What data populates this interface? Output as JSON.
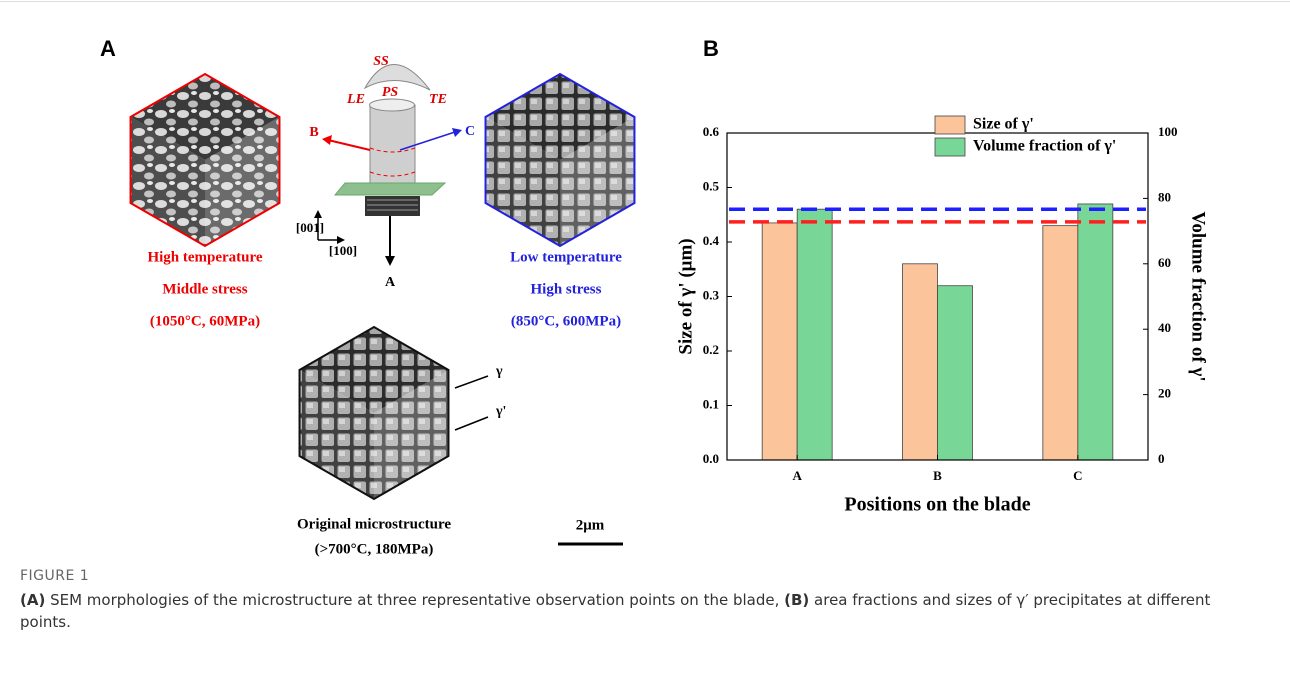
{
  "panel_a": {
    "label": "A",
    "blade": {
      "ss": "SS",
      "ps": "PS",
      "le": "LE",
      "te": "TE",
      "point_b": "B",
      "point_c": "C",
      "point_a": "A",
      "axis_001": "[001]",
      "axis_100": "[100]"
    },
    "cube_b": {
      "lines": [
        "High temperature",
        "Middle stress",
        "(1050°C, 60MPa)"
      ]
    },
    "cube_c": {
      "lines": [
        "Low temperature",
        "High stress",
        "(850°C, 600MPa)"
      ]
    },
    "cube_a": {
      "lines": [
        "Original microstructure",
        "(>700°C, 180MPa)"
      ],
      "gamma": "γ",
      "gamma_prime": "γ'"
    },
    "scale_bar": "2μm"
  },
  "chart_data": {
    "type": "bar",
    "panel_label": "B",
    "x_label": "Positions on the blade",
    "y_label": "Size of γ' (μm)",
    "y2_label": "Volume fraction of γ'",
    "categories": [
      "A",
      "B",
      "C"
    ],
    "series": [
      {
        "name": "Size of γ'",
        "color": "#fbc49b",
        "values": [
          0.435,
          0.36,
          0.43
        ]
      },
      {
        "name": "Volume fraction of γ'",
        "color": "#78d697",
        "values": [
          76.7,
          53.3,
          78.3
        ],
        "axis": "y2"
      }
    ],
    "reference_lines": [
      {
        "value": 0.46,
        "color": "#1f1fff"
      },
      {
        "value": 0.437,
        "color": "#ff1f1f"
      }
    ],
    "ylim": [
      0,
      0.6
    ],
    "yticks": [
      {
        "value": 0,
        "label": "0.0"
      },
      0.1,
      0.2,
      0.3,
      0.4,
      0.5,
      0.6
    ],
    "y2lim": [
      0,
      100
    ],
    "y2ticks": [
      0,
      20,
      40,
      60,
      80,
      100
    ],
    "legend": "top-right"
  },
  "caption": {
    "label": "FIGURE 1",
    "parts": [
      "(A)",
      " SEM morphologies of the microstructure at three representative observation points on the blade, ",
      "(B)",
      " area fractions and sizes of γ′ precipitates at different points."
    ]
  }
}
